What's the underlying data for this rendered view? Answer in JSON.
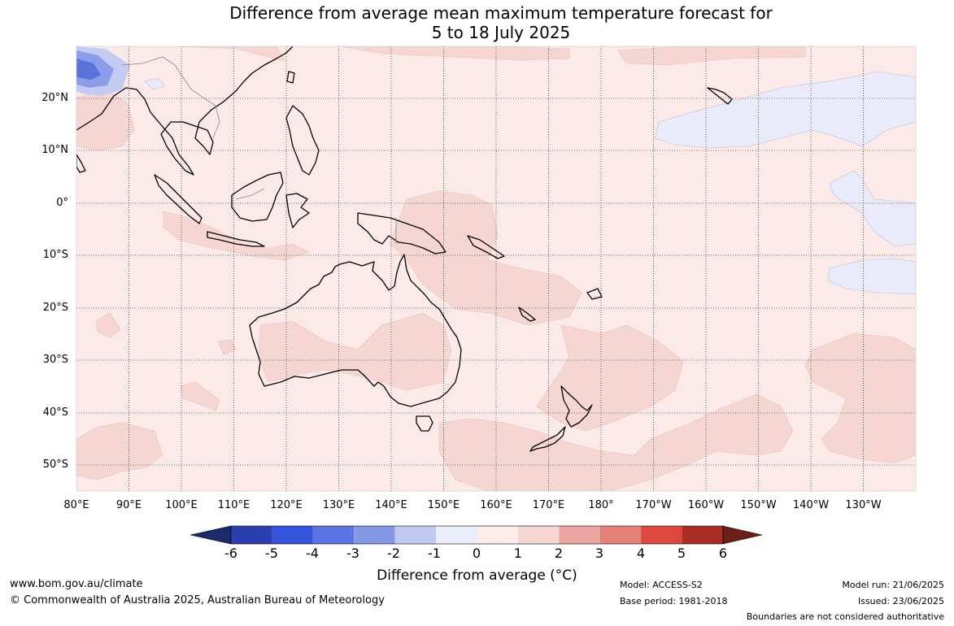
{
  "title": {
    "line1": "Difference from average mean maximum temperature forecast for",
    "line2": "5 to 18 July 2025"
  },
  "lat_labels": [
    "20°N",
    "10°N",
    "0°",
    "10°S",
    "20°S",
    "30°S",
    "40°S",
    "50°S"
  ],
  "lon_labels": [
    "80°E",
    "90°E",
    "100°E",
    "110°E",
    "120°E",
    "130°E",
    "140°E",
    "150°E",
    "160°E",
    "170°E",
    "180°",
    "170°W",
    "160°W",
    "150°W",
    "140°W",
    "130°W"
  ],
  "colorbar": {
    "ticks": [
      "-6",
      "-5",
      "-4",
      "-3",
      "-2",
      "-1",
      "0",
      "1",
      "2",
      "3",
      "4",
      "5",
      "6"
    ],
    "title": "Difference from average (°C)",
    "colors": [
      "#1b2a6b",
      "#2a3eb0",
      "#3454de",
      "#5c73e3",
      "#8598e8",
      "#c2caf4",
      "#eaedfb",
      "#fdecea",
      "#f7d5d3",
      "#eba59f",
      "#e4827a",
      "#dc483c",
      "#a92c25",
      "#6e1e19"
    ]
  },
  "map_colors": {
    "base": "#fbeae8",
    "warm1": "#f6d6d3",
    "warm2": "#f0c4c0",
    "cool1": "#e9ebfa",
    "cool2": "#c4cbf2",
    "cool3": "#8b9ce9",
    "cool4": "#5b72dd",
    "land_outline": "#000000",
    "border": "#888888"
  },
  "footer": {
    "site": "www.bom.gov.au/climate",
    "copyright": "© Commonwealth of Australia 2025, Australian Bureau of Meteorology",
    "model": "Model: ACCESS-S2",
    "base_period": "Base period: 1981-2018",
    "model_run": "Model run: 21/06/2025",
    "issued": "Issued: 23/06/2025",
    "disclaimer": "Boundaries are not considered authoritative"
  }
}
